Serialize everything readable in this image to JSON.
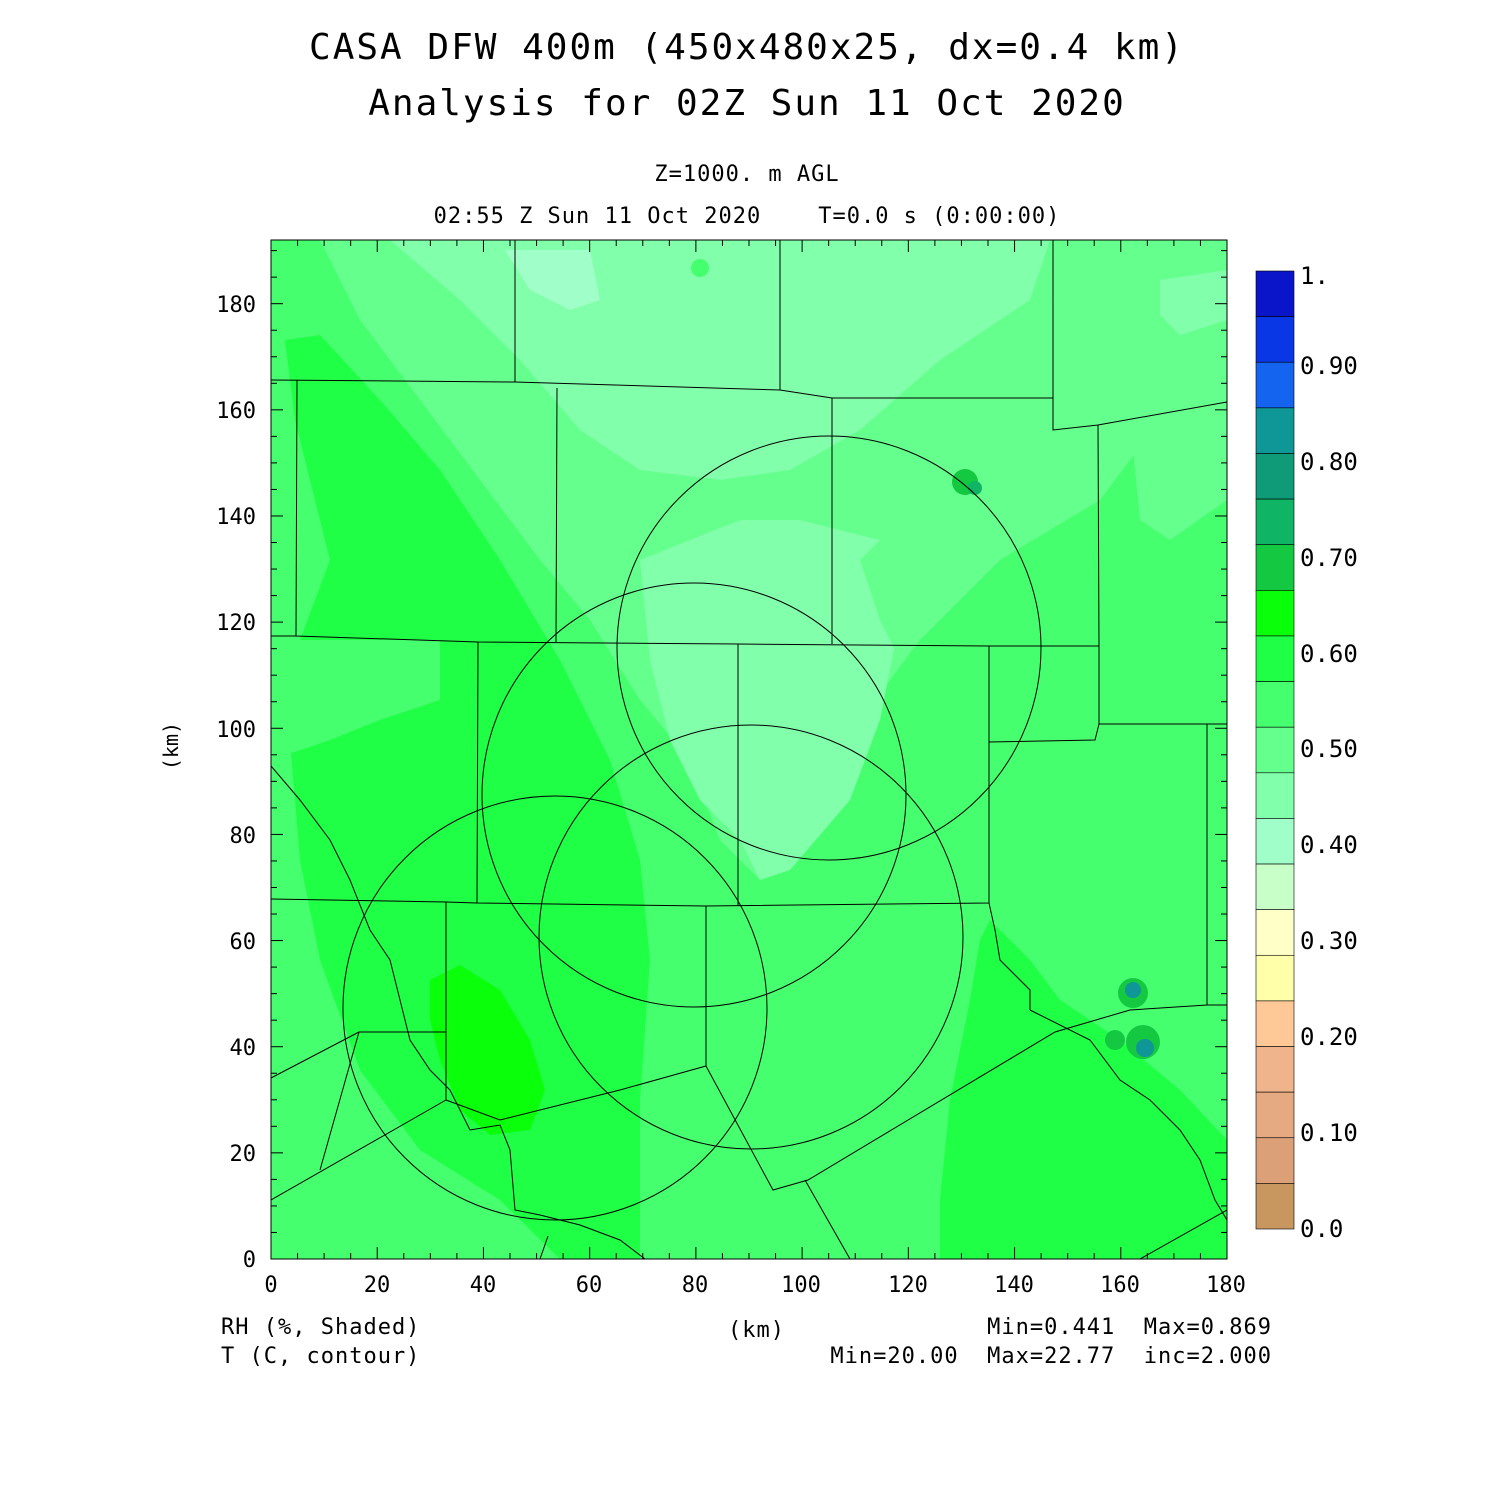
{
  "header": {
    "title_line1": "CASA DFW 400m (450x480x25, dx=0.4 km)",
    "title_line2": "Analysis for 02Z Sun 11 Oct 2020",
    "level": "Z=1000. m AGL",
    "valid_time": "02:55 Z Sun 11 Oct 2020    T=0.0 s (0:00:00)"
  },
  "axes": {
    "x_label": "(km)",
    "y_label": "(km)",
    "x_ticks": [
      "0",
      "20",
      "40",
      "60",
      "80",
      "100",
      "120",
      "140",
      "160",
      "180"
    ],
    "y_ticks": [
      "0",
      "20",
      "40",
      "60",
      "80",
      "100",
      "120",
      "140",
      "160",
      "180"
    ]
  },
  "colorbar": {
    "labels": [
      "1.",
      "0.90",
      "0.80",
      "0.70",
      "0.60",
      "0.50",
      "0.40",
      "0.30",
      "0.20",
      "0.10",
      "0.0"
    ],
    "colors": [
      "#0a14c8",
      "#0a37e6",
      "#1464f0",
      "#0f9696",
      "#0f9b78",
      "#0fb464",
      "#14c841",
      "#0aff0a",
      "#1eff46",
      "#46ff6e",
      "#64ff8c",
      "#82ffaa",
      "#a0ffc8",
      "#c8ffc8",
      "#ffffc8",
      "#ffffaa",
      "#ffc896",
      "#f0b48c",
      "#e6aa82",
      "#dca078",
      "#c8965f"
    ]
  },
  "footer": {
    "field1": "RH (%, Shaded)",
    "field2": "T (C, contour)",
    "stats1": "Min=0.441  Max=0.869",
    "stats2": "Min=20.00  Max=22.77  inc=2.000",
    "x_unit": "(km)"
  }
}
